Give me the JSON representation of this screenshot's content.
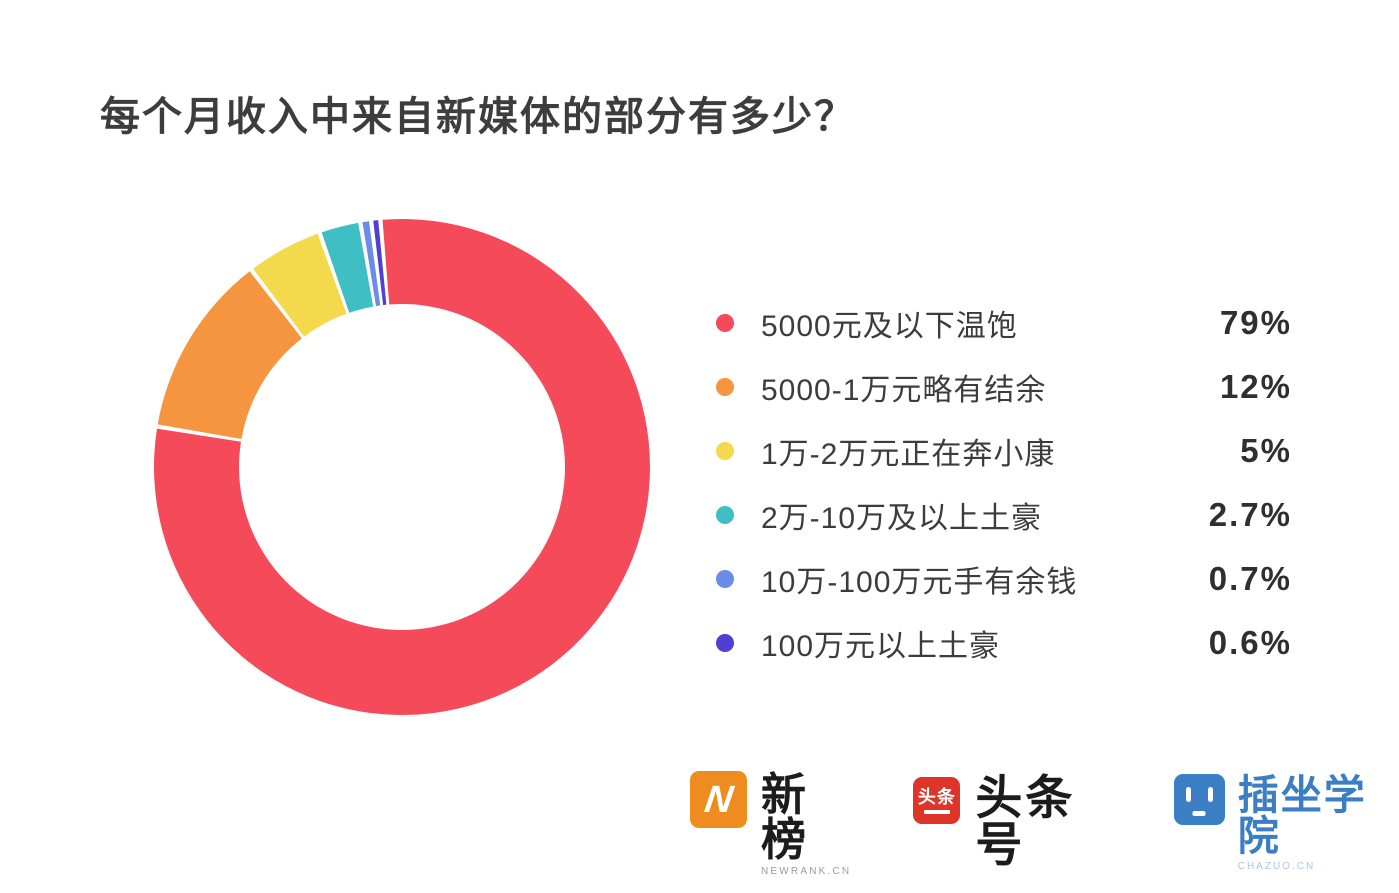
{
  "title": "每个月收入中来自新媒体的部分有多少？",
  "chart_data": {
    "type": "pie",
    "subtype": "donut",
    "title": "每个月收入中来自新媒体的部分有多少？",
    "legend_position": "right",
    "start_angle_deg": -5,
    "direction": "clockwise",
    "outer_radius_px": 248,
    "inner_radius_px": 163,
    "slice_gap_deg": 1,
    "segments": [
      {
        "label": "5000元及以下温饱",
        "value": 79,
        "display": "79%",
        "color": "#f54a5a"
      },
      {
        "label": "5000-1万元略有结余",
        "value": 12,
        "display": "12%",
        "color": "#f6953f"
      },
      {
        "label": "1万-2万元正在奔小康",
        "value": 5,
        "display": "5%",
        "color": "#f5d94d"
      },
      {
        "label": "2万-10万及以上土豪",
        "value": 2.7,
        "display": "2.7%",
        "color": "#3fbfc4"
      },
      {
        "label": "10万-100万元手有余钱",
        "value": 0.7,
        "display": "0.7%",
        "color": "#6b8de8"
      },
      {
        "label": "100万元以上土豪",
        "value": 0.6,
        "display": "0.6%",
        "color": "#4f3fd4"
      }
    ]
  },
  "footer": {
    "logos": [
      {
        "name": "newrank",
        "icon_glyph": "N",
        "icon_color": "#ef8c1f",
        "text": "新榜",
        "subtext": "NEWRANK.CN"
      },
      {
        "name": "toutiao",
        "icon_text": "头条",
        "icon_color": "#dd3528",
        "text": "头条号"
      },
      {
        "name": "chazuo",
        "icon_color": "#3b7ec3",
        "text": "插坐学院",
        "text_color": "#3b7ec3",
        "subtext": "CHAZUO.CN",
        "subtext_color": "#a9c6e2"
      }
    ]
  }
}
